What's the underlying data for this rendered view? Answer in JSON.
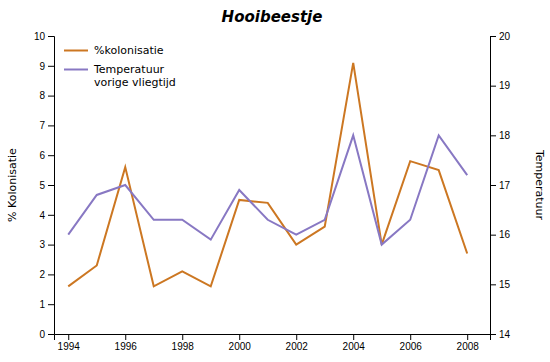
{
  "chart_data": {
    "type": "line",
    "title": "Hooibeestje",
    "x": [
      1994,
      1995,
      1996,
      1997,
      1998,
      1999,
      2000,
      2001,
      2002,
      2003,
      2004,
      2005,
      2006,
      2007,
      2008
    ],
    "series": [
      {
        "name": "%kolonisatie",
        "color": "#CC7722",
        "values": [
          1.6,
          2.3,
          5.6,
          1.6,
          2.1,
          1.6,
          4.5,
          4.4,
          3.0,
          3.6,
          9.1,
          3.0,
          5.8,
          5.5,
          2.7
        ]
      },
      {
        "name": "Temperatuur\nvorige vliegtijd",
        "color": "#8878C3",
        "axis": "y2",
        "values": [
          16.0,
          16.8,
          17.0,
          16.3,
          16.3,
          15.9,
          16.9,
          16.3,
          16.0,
          16.3,
          18.0,
          15.8,
          16.3,
          18.0,
          17.2
        ]
      }
    ],
    "ylabel": "% Kolonisatie",
    "y2label": "Temperatuur",
    "xlim": [
      1993.5,
      2008.8
    ],
    "xticks": [
      1994,
      1996,
      1998,
      2000,
      2002,
      2004,
      2006,
      2008
    ],
    "ylim": [
      0,
      10
    ],
    "yticks": [
      0,
      1,
      2,
      3,
      4,
      5,
      6,
      7,
      8,
      9,
      10
    ],
    "y2lim": [
      14,
      20
    ],
    "y2ticks": [
      14,
      15,
      16,
      17,
      18,
      19,
      20
    ],
    "legend": "upper left"
  }
}
